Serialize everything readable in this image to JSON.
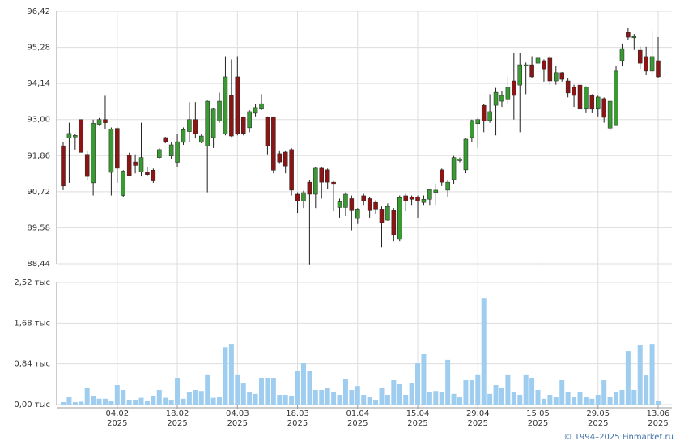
{
  "chart_data": [
    {
      "type": "candlestick",
      "open": [
        92.17,
        92.42,
        92.45,
        93.0,
        91.9,
        91.0,
        92.85,
        93.0,
        91.33,
        92.72,
        90.6,
        91.88,
        91.66,
        91.35,
        91.33,
        91.4,
        91.8,
        92.43,
        91.85,
        91.65,
        92.28,
        92.62,
        93.0,
        92.28,
        92.17,
        92.43,
        92.95,
        92.55,
        93.76,
        94.35,
        93.07,
        92.74,
        93.2,
        93.33,
        93.07,
        93.07,
        91.92,
        91.97,
        92.05,
        90.64,
        90.43,
        91.02,
        90.64,
        91.46,
        91.41,
        91.02,
        90.22,
        90.22,
        90.5,
        89.87,
        90.59,
        90.5,
        90.38,
        90.17,
        89.82,
        90.12,
        89.21,
        90.59,
        90.55,
        90.55,
        90.38,
        90.48,
        90.7,
        91.41,
        90.77,
        91.1,
        91.7,
        91.41,
        92.43,
        92.87,
        93.45,
        92.97,
        93.45,
        93.58,
        93.65,
        94.22,
        94.09,
        94.7,
        94.73,
        94.78,
        94.86,
        94.94,
        94.22,
        94.48,
        94.22,
        94.02,
        94.09,
        93.33,
        93.76,
        93.33,
        93.66,
        92.73,
        92.81,
        94.86,
        95.75,
        95.58,
        95.19,
        94.99,
        94.53,
        94.86
      ],
      "high": [
        92.3,
        92.9,
        92.55,
        93.0,
        92.0,
        93.0,
        93.05,
        93.75,
        92.75,
        92.75,
        91.4,
        91.95,
        91.9,
        92.9,
        91.5,
        91.45,
        92.1,
        92.45,
        92.3,
        92.55,
        92.75,
        93.55,
        93.55,
        92.55,
        93.6,
        93.35,
        93.85,
        95.0,
        94.9,
        95.0,
        93.1,
        93.3,
        93.5,
        93.8,
        93.1,
        93.1,
        92.0,
        92.0,
        92.1,
        90.7,
        90.75,
        91.1,
        91.5,
        91.5,
        91.45,
        91.05,
        90.5,
        90.7,
        90.6,
        90.2,
        90.65,
        90.55,
        90.45,
        90.25,
        90.35,
        90.2,
        90.6,
        90.65,
        90.6,
        90.6,
        90.6,
        90.8,
        90.95,
        91.45,
        91.1,
        91.85,
        91.8,
        92.4,
        93.0,
        93.05,
        93.5,
        93.8,
        94.0,
        93.9,
        94.35,
        95.1,
        95.1,
        94.8,
        95.0,
        95.0,
        94.9,
        95.0,
        94.7,
        94.5,
        94.3,
        94.1,
        94.15,
        94.05,
        93.8,
        93.75,
        93.7,
        93.6,
        94.7,
        95.4,
        95.9,
        95.7,
        95.3,
        95.3,
        95.8,
        95.6
      ],
      "low": [
        90.77,
        91.0,
        92.05,
        91.96,
        91.1,
        90.6,
        92.8,
        92.7,
        90.6,
        91.0,
        90.55,
        91.2,
        91.3,
        91.2,
        91.2,
        91.0,
        91.75,
        92.25,
        91.75,
        91.5,
        92.2,
        92.3,
        92.4,
        92.25,
        90.7,
        92.1,
        92.9,
        92.5,
        92.45,
        92.5,
        92.5,
        92.6,
        93.1,
        93.3,
        91.9,
        91.3,
        91.6,
        91.3,
        90.6,
        90.05,
        90.2,
        88.42,
        90.2,
        90.5,
        90.8,
        90.1,
        89.9,
        89.95,
        89.5,
        89.7,
        90.3,
        89.9,
        90.0,
        88.97,
        89.8,
        89.15,
        89.15,
        90.1,
        90.3,
        89.9,
        90.3,
        90.3,
        90.3,
        90.9,
        90.55,
        90.95,
        91.65,
        91.3,
        92.3,
        92.1,
        92.6,
        92.9,
        92.5,
        93.4,
        93.5,
        93.0,
        92.6,
        93.8,
        94.3,
        94.7,
        94.2,
        94.1,
        94.1,
        94.2,
        93.7,
        93.4,
        93.3,
        93.2,
        93.2,
        93.1,
        92.9,
        92.65,
        92.8,
        94.7,
        95.5,
        95.2,
        94.6,
        94.4,
        94.4,
        94.3
      ],
      "close": [
        90.9,
        92.56,
        92.5,
        91.96,
        91.2,
        92.88,
        93.0,
        92.9,
        92.7,
        91.46,
        91.37,
        91.23,
        91.55,
        91.8,
        91.26,
        91.06,
        92.05,
        92.3,
        92.2,
        92.3,
        92.68,
        93.0,
        92.55,
        92.48,
        93.58,
        93.33,
        93.58,
        94.35,
        92.48,
        92.56,
        92.56,
        93.25,
        93.38,
        93.5,
        92.17,
        91.4,
        91.66,
        91.53,
        90.77,
        90.43,
        90.69,
        90.64,
        91.46,
        91.02,
        91.02,
        90.95,
        90.4,
        90.64,
        90.12,
        90.17,
        90.43,
        90.12,
        90.17,
        89.74,
        90.25,
        89.36,
        90.53,
        90.43,
        90.48,
        90.43,
        90.48,
        90.79,
        90.77,
        91.02,
        91.02,
        91.8,
        91.75,
        92.38,
        92.97,
        93.0,
        92.95,
        93.25,
        93.86,
        93.76,
        94.02,
        93.76,
        94.73,
        94.73,
        94.35,
        94.94,
        94.6,
        94.22,
        94.48,
        94.27,
        93.84,
        93.76,
        93.33,
        94.02,
        93.33,
        93.71,
        93.07,
        93.58,
        94.53,
        95.24,
        95.6,
        95.62,
        94.78,
        94.53,
        94.99,
        94.35
      ],
      "up_color": "#3a9a32",
      "down_color": "#8b1414",
      "ylim": [
        88.44,
        96.42
      ],
      "yticks": [
        {
          "value": 88.44,
          "label": "88,44"
        },
        {
          "value": 89.58,
          "label": "89,58"
        },
        {
          "value": 90.72,
          "label": "90,72"
        },
        {
          "value": 91.86,
          "label": "91,86"
        },
        {
          "value": 93.0,
          "label": "93,00"
        },
        {
          "value": 94.14,
          "label": "94,14"
        },
        {
          "value": 95.28,
          "label": "95,28"
        },
        {
          "value": 96.42,
          "label": "96,42"
        }
      ],
      "grid": true
    },
    {
      "type": "bar",
      "categories": [
        null,
        null,
        null,
        null,
        null,
        null,
        null,
        null,
        null,
        "04.02 2025",
        null,
        null,
        null,
        null,
        null,
        null,
        null,
        null,
        null,
        "18.02 2025",
        null,
        null,
        null,
        null,
        null,
        null,
        null,
        null,
        null,
        "04.03 2025",
        null,
        null,
        null,
        null,
        null,
        null,
        null,
        null,
        null,
        "18.03 2025",
        null,
        null,
        null,
        null,
        null,
        null,
        null,
        null,
        null,
        "01.04 2025",
        null,
        null,
        null,
        null,
        null,
        null,
        null,
        null,
        null,
        "15.04 2025",
        null,
        null,
        null,
        null,
        null,
        null,
        null,
        null,
        null,
        "29.04 2025",
        null,
        null,
        null,
        null,
        null,
        null,
        null,
        null,
        null,
        "15.05 2025",
        null,
        null,
        null,
        null,
        null,
        null,
        null,
        null,
        null,
        "29.05 2025",
        null,
        null,
        null,
        null,
        null,
        null,
        null,
        null,
        null,
        "13.06 2025"
      ],
      "values": [
        0.05,
        0.15,
        0.05,
        0.06,
        0.35,
        0.18,
        0.12,
        0.12,
        0.08,
        0.4,
        0.3,
        0.1,
        0.1,
        0.14,
        0.07,
        0.18,
        0.3,
        0.14,
        0.1,
        0.55,
        0.12,
        0.25,
        0.3,
        0.28,
        0.62,
        0.14,
        0.15,
        1.18,
        1.25,
        0.62,
        0.45,
        0.25,
        0.22,
        0.55,
        0.55,
        0.55,
        0.2,
        0.2,
        0.18,
        0.7,
        0.85,
        0.7,
        0.3,
        0.3,
        0.35,
        0.25,
        0.2,
        0.52,
        0.3,
        0.38,
        0.2,
        0.15,
        0.1,
        0.35,
        0.2,
        0.5,
        0.42,
        0.2,
        0.45,
        0.85,
        1.05,
        0.25,
        0.28,
        0.25,
        0.92,
        0.22,
        0.15,
        0.5,
        0.5,
        0.62,
        2.2,
        0.22,
        0.4,
        0.35,
        0.62,
        0.25,
        0.2,
        0.62,
        0.55,
        0.3,
        0.12,
        0.2,
        0.15,
        0.5,
        0.25,
        0.15,
        0.25,
        0.15,
        0.12,
        0.2,
        0.5,
        0.15,
        0.25,
        0.3,
        1.1,
        0.3,
        1.22,
        0.6,
        1.25,
        0.08
      ],
      "color": "#9fcdf0",
      "ylim": [
        0,
        2.52
      ],
      "yticks": [
        {
          "value": 0,
          "label": "0,00 тыс"
        },
        {
          "value": 0.84,
          "label": "0,84 тыс"
        },
        {
          "value": 1.68,
          "label": "1,68 тыс"
        },
        {
          "value": 2.52,
          "label": "2,52 тыс"
        }
      ],
      "grid": true,
      "credit": "© 1994–2025 Finmarket.ru"
    }
  ]
}
